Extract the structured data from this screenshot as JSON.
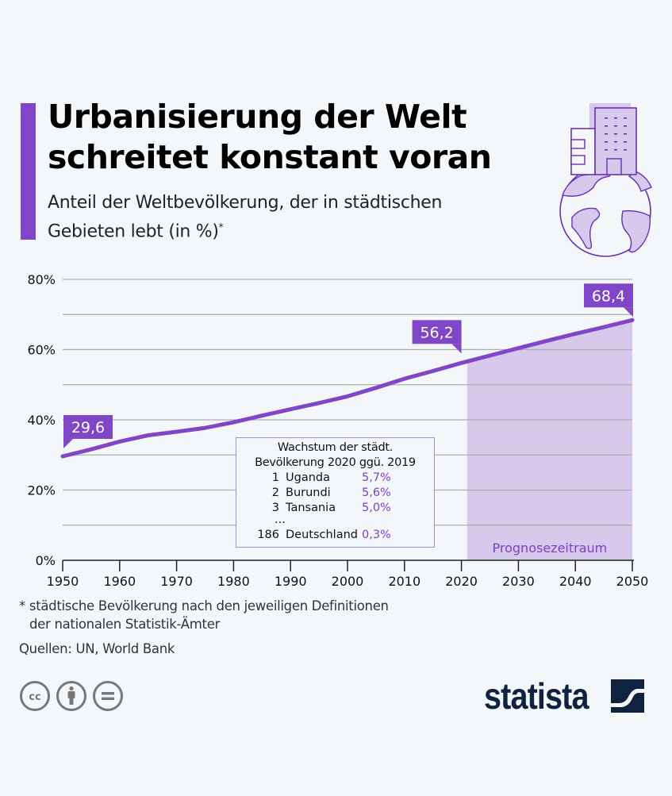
{
  "header": {
    "title_line1": "Urbanisierung der Welt",
    "title_line2": "schreitet konstant voran",
    "subtitle_line1": "Anteil der Weltbevölkerung, der in städtischen",
    "subtitle_line2": "Gebieten lebt (in %)",
    "subtitle_marker": "*",
    "icon": "globe-with-building-icon"
  },
  "colors": {
    "accent": "#8046c7",
    "forecast_fill": "#d7c9ec",
    "background": "#f4f7fa",
    "brand": "#0f2340"
  },
  "chart_data": {
    "type": "line",
    "title": "Urbanisierung der Welt schreitet konstant voran",
    "ylabel": "Anteil der Weltbevölkerung in städtischen Gebieten (in %)",
    "xlabel": "",
    "x": [
      1950,
      1955,
      1960,
      1965,
      1970,
      1975,
      1980,
      1985,
      1990,
      1995,
      2000,
      2005,
      2010,
      2015,
      2020,
      2025,
      2030,
      2035,
      2040,
      2045,
      2050
    ],
    "series": [
      {
        "name": "Anteil städtische Bevölkerung",
        "values": [
          29.6,
          31.6,
          33.8,
          35.6,
          36.6,
          37.7,
          39.3,
          41.2,
          43.0,
          44.8,
          46.7,
          49.1,
          51.7,
          53.9,
          56.2,
          58.3,
          60.4,
          62.5,
          64.5,
          66.4,
          68.4
        ]
      }
    ],
    "ylim": [
      0,
      80
    ],
    "xlim": [
      1950,
      2050
    ],
    "yticks": [
      0,
      20,
      40,
      60,
      80
    ],
    "ytick_labels": [
      "0%",
      "20%",
      "40%",
      "60%",
      "80%"
    ],
    "gridlines": [
      0,
      10,
      20,
      30,
      40,
      50,
      60,
      70,
      80
    ],
    "xticks": [
      1950,
      1960,
      1970,
      1980,
      1990,
      2000,
      2010,
      2020,
      2030,
      2040,
      2050
    ],
    "xtick_labels": [
      "1950",
      "1960",
      "1970",
      "1980",
      "1990",
      "2000",
      "2010",
      "2020",
      "2030",
      "2040",
      "2050"
    ],
    "grid": true,
    "annotations": [
      {
        "x": 1950,
        "y": 29.6,
        "label": "29,6"
      },
      {
        "x": 2020,
        "y": 56.2,
        "label": "56,2"
      },
      {
        "x": 2050,
        "y": 68.4,
        "label": "68,4"
      }
    ],
    "forecast_range": {
      "start": 2021,
      "end": 2050,
      "label": "Prognosezeitraum"
    }
  },
  "inset": {
    "title_line1": "Wachstum der städt.",
    "title_line2": "Bevölkerung 2020 ggü. 2019",
    "rows": [
      {
        "rank": "1",
        "country": "Uganda",
        "value": "5,7%"
      },
      {
        "rank": "2",
        "country": "Burundi",
        "value": "5,6%"
      },
      {
        "rank": "3",
        "country": "Tansania",
        "value": "5,0%"
      }
    ],
    "ellipsis": "...",
    "last_row": {
      "rank": "186",
      "country": "Deutschland",
      "value": "0,3%"
    }
  },
  "footer": {
    "footnote_line1": "* städtische Bevölkerung nach den jeweiligen Definitionen",
    "footnote_line2": "der nationalen Statistik-Ämter",
    "sources": "Quellen: UN, World Bank",
    "license_icons": [
      "cc-icon",
      "attribution-icon",
      "no-derivatives-icon"
    ],
    "brand": "statista"
  }
}
